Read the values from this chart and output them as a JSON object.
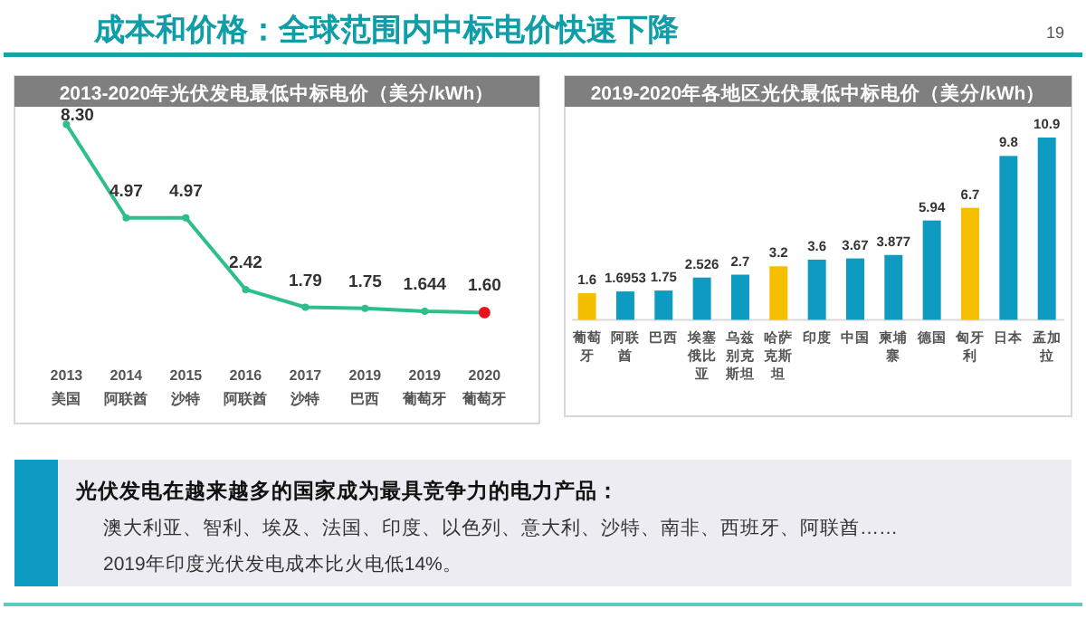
{
  "chart_data": [
    {
      "type": "other",
      "title": "成本和价格：全球范围内中标电价快速下降",
      "annotations": [
        "19",
        "光伏发电在越来越多的国家成为最具竞争力的电力产品：",
        "澳大利亚、智利、埃及、法国、印度、以色列、意大利、沙特、南非、西班牙、阿联酋……",
        "2019年印度光伏发电成本比火电低14%。"
      ]
    },
    {
      "type": "line",
      "title": "2013-2020年光伏发电最低中标电价（美分/kWh）",
      "categories": [
        "2013\n美国",
        "2014\n阿联酋",
        "2015\n沙特",
        "2016\n阿联酋",
        "2017\n沙特",
        "2019\n巴西",
        "2019\n葡萄牙",
        "2020\n葡萄牙"
      ],
      "series": [
        {
          "color": "#2dbe8a",
          "colors": [
            "#2dbe8a",
            "#2dbe8a",
            "#2dbe8a",
            "#2dbe8a",
            "#2dbe8a",
            "#2dbe8a",
            "#2dbe8a",
            "#e8141c"
          ],
          "values": [
            8.3,
            4.97,
            4.97,
            2.42,
            1.79,
            1.75,
            1.644,
            1.6
          ],
          "value_labels": [
            "8.30",
            "4.97",
            "4.97",
            "2.42",
            "1.79",
            "1.75",
            "1.644",
            "1.60"
          ]
        }
      ],
      "marker": "circle",
      "line_style": "solid"
    },
    {
      "type": "bar",
      "title": "2019-2020年各地区光伏最低中标电价（美分/kWh）",
      "categories": [
        "葡萄牙",
        "阿联酋",
        "巴西",
        "埃塞俄比亚",
        "乌兹别克斯坦",
        "哈萨克斯坦",
        "印度",
        "中国",
        "柬埔寨",
        "德国",
        "匈牙利",
        "日本",
        "孟加拉"
      ],
      "values": [
        1.6,
        1.6953,
        1.75,
        2.526,
        2.7,
        3.2,
        3.6,
        3.67,
        3.877,
        5.94,
        6.7,
        9.8,
        10.9
      ],
      "colors": [
        "#f5bf00",
        "#0e9bc2",
        "#0e9bc2",
        "#0e9bc2",
        "#0e9bc2",
        "#f5bf00",
        "#0e9bc2",
        "#0e9bc2",
        "#0e9bc2",
        "#0e9bc2",
        "#f5bf00",
        "#0e9bc2",
        "#0e9bc2"
      ],
      "data_labels": true
    }
  ]
}
